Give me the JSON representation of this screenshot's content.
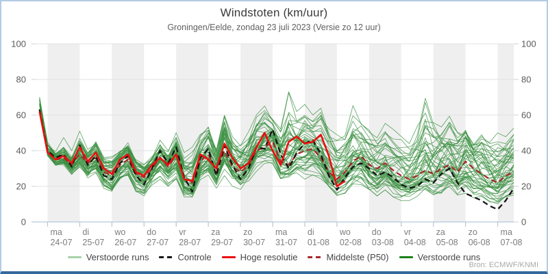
{
  "window": {
    "title": "Windstoten (km/uur)",
    "subtitle": "Groningen/Eelde, zondag 23 juli 2023 (Versie zo 12 uur)",
    "source": "Bron: ECMWF/KNMI"
  },
  "colors": {
    "border": "#b3cbe5",
    "border_bottom": "#35689d",
    "day_band": "#efefef",
    "grid": "#e2e2e2",
    "axis": "#b4c7dc",
    "tick_stub": "#c9d3de",
    "member_green": "#3c9142",
    "control_black": "#151515",
    "hres_red": "#e90f0f",
    "p50_dark_red": "#a52a2a",
    "axis_text": "#5a5a5a",
    "day_text": "#7d7d7d"
  },
  "chart_data": {
    "type": "line",
    "title": "Windstoten (km/uur)",
    "subtitle": "Groningen/Eelde, zondag 23 juli 2023 (Versie zo 12 uur)",
    "ylabel": "km/uur",
    "ylim": [
      0,
      100
    ],
    "yticks": [
      0,
      20,
      40,
      60,
      80,
      100
    ],
    "x_start": "zo 23-07-2023 12:00",
    "x_span_days": 15,
    "first_point_day_offset": 0.25,
    "time_step_days": 0.25,
    "x_days": [
      {
        "weekday": "ma",
        "date": "24-07"
      },
      {
        "weekday": "di",
        "date": "25-07"
      },
      {
        "weekday": "wo",
        "date": "26-07"
      },
      {
        "weekday": "do",
        "date": "27-07"
      },
      {
        "weekday": "vr",
        "date": "28-07"
      },
      {
        "weekday": "za",
        "date": "29-07"
      },
      {
        "weekday": "zo",
        "date": "30-07"
      },
      {
        "weekday": "ma",
        "date": "31-07"
      },
      {
        "weekday": "di",
        "date": "01-08"
      },
      {
        "weekday": "wo",
        "date": "02-08"
      },
      {
        "weekday": "do",
        "date": "03-08"
      },
      {
        "weekday": "vr",
        "date": "04-08"
      },
      {
        "weekday": "za",
        "date": "05-08"
      },
      {
        "weekday": "zo",
        "date": "06-08"
      },
      {
        "weekday": "ma",
        "date": "07-08"
      }
    ],
    "series": [
      {
        "name": "Hoge resolutie",
        "style": "solid",
        "color": "#e90f0f",
        "width": 2.6,
        "values": [
          62,
          39,
          35,
          37,
          33,
          42,
          34,
          39,
          30,
          27,
          35,
          38,
          28,
          26,
          32,
          36,
          32,
          38,
          24,
          23,
          38,
          35,
          30,
          44,
          36,
          30,
          33,
          42,
          50,
          40,
          32,
          45,
          48,
          44,
          45,
          49,
          37,
          20,
          23
        ]
      },
      {
        "name": "Controle",
        "style": "dashed",
        "color": "#151515",
        "width": 2.3,
        "values": [
          63,
          40,
          36,
          38,
          31,
          43,
          32,
          37,
          26,
          24,
          33,
          37,
          26,
          21,
          30,
          40,
          33,
          42,
          25,
          17,
          36,
          41,
          26,
          43,
          32,
          24,
          30,
          42,
          41,
          52,
          38,
          30,
          39,
          44,
          46,
          38,
          26,
          18,
          25,
          31,
          33,
          30,
          26,
          28,
          25,
          21,
          19,
          20,
          24,
          22,
          27,
          30,
          22,
          16,
          14,
          12,
          9,
          7,
          12,
          19
        ]
      },
      {
        "name": "Middelste (P50)",
        "style": "dashed",
        "color": "#a52a2a",
        "width": 2.2,
        "values": [
          63,
          39,
          35,
          36,
          32,
          38,
          33,
          36,
          28,
          26,
          32,
          35,
          27,
          25,
          30,
          36,
          31,
          38,
          24,
          22,
          34,
          38,
          28,
          40,
          31,
          28,
          32,
          40,
          42,
          45,
          34,
          32,
          38,
          40,
          41,
          36,
          28,
          24,
          28,
          34,
          37,
          32,
          30,
          33,
          29,
          26,
          24,
          26,
          29,
          27,
          30,
          32,
          28,
          34,
          30,
          27,
          24,
          22,
          26,
          28
        ]
      }
    ],
    "ensemble": {
      "name": "Verstoorde runs",
      "member_count": 50,
      "color": "#3c9142",
      "envelope_min": [
        58,
        36,
        30,
        30,
        24,
        28,
        20,
        25,
        18,
        15,
        22,
        24,
        16,
        13,
        20,
        24,
        20,
        24,
        14,
        12,
        22,
        24,
        18,
        26,
        20,
        16,
        20,
        26,
        28,
        26,
        20,
        24,
        26,
        24,
        26,
        24,
        18,
        14,
        16,
        20,
        20,
        16,
        14,
        18,
        14,
        12,
        12,
        14,
        16,
        14,
        14,
        16,
        12,
        14,
        12,
        12,
        10,
        8,
        12,
        14
      ],
      "envelope_max": [
        76,
        48,
        42,
        49,
        40,
        51,
        42,
        48,
        38,
        38,
        42,
        47,
        38,
        36,
        42,
        50,
        44,
        52,
        40,
        42,
        50,
        58,
        46,
        66,
        50,
        48,
        52,
        62,
        66,
        60,
        55,
        76,
        62,
        66,
        60,
        66,
        54,
        50,
        52,
        67,
        60,
        56,
        52,
        58,
        52,
        48,
        46,
        56,
        74,
        62,
        58,
        62,
        56,
        60,
        52,
        56,
        48,
        50,
        52,
        57
      ]
    },
    "legend": [
      {
        "label": "Verstoorde runs",
        "color": "#a8d1a8",
        "style": "solid"
      },
      {
        "label": "Controle",
        "color": "#151515",
        "style": "dashed"
      },
      {
        "label": "Hoge resolutie",
        "color": "#e90f0f",
        "style": "solid"
      },
      {
        "label": "Middelste (P50)",
        "color": "#a52a2a",
        "style": "dashed"
      },
      {
        "label": "Verstoorde runs",
        "color": "#1b801b",
        "style": "solid"
      }
    ],
    "source": "Bron: ECMWF/KNMI"
  }
}
